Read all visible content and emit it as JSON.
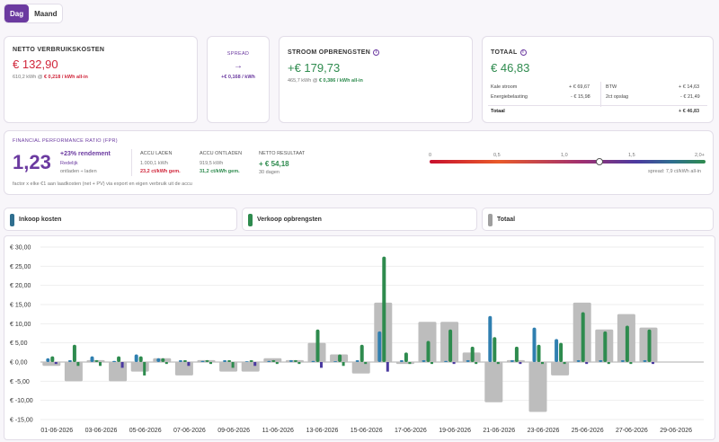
{
  "tabs": [
    {
      "label": "Dag",
      "active": true
    },
    {
      "label": "Maand",
      "active": false
    }
  ],
  "netto": {
    "title": "NETTO VERBRUIKSKOSTEN",
    "value": "€ 132,90",
    "kwh": "610,2 kWh @",
    "rate": "€ 0,218 / kWh all-in"
  },
  "spread": {
    "title": "SPREAD",
    "arrow": "→",
    "value": "+€ 0,168 / kWh"
  },
  "stroom": {
    "title": "STROOM OPBRENGSTEN",
    "value": "+€ 179,73",
    "kwh": "465,7 kWh @",
    "rate": "€ 0,386 / kWh all-in"
  },
  "totaal": {
    "title": "TOTAAL",
    "value": "€ 46,83",
    "rows": [
      {
        "label": "Kale stroom",
        "value": "+ € 69,67",
        "color": "green"
      },
      {
        "label": "BTW",
        "value": "+ € 14,63",
        "color": "green"
      },
      {
        "label": "Energiebelasting",
        "value": "- € 15,98",
        "color": "red"
      },
      {
        "label": "2ct opslag",
        "value": "- € 21,49",
        "color": "red"
      }
    ],
    "total_label": "Totaal",
    "total_value": "+ € 46,83"
  },
  "fpr": {
    "title": "FINANCIAL PERFORMANCE RATIO (FPR)",
    "value": "1,23",
    "rendement": "+23% rendement",
    "quality": "Redelijk",
    "formula": "ontladen ÷ laden",
    "laden_label": "ACCU LADEN",
    "laden_kwh": "1.000,1 kWh",
    "laden_rate": "23,2 ct/kWh gem.",
    "ontladen_label": "ACCU ONTLADEN",
    "ontladen_kwh": "919,5 kWh",
    "ontladen_rate": "31,2 ct/kWh gem.",
    "result_label": "NETTO RESULTAAT",
    "result_value": "+ € 54,18",
    "result_days": "30 dagen",
    "footnote": "factor x elke €1 aan laadkosten (net + PV) via export en eigen verbruik uit de accu",
    "scale_ticks": [
      "0",
      "0,5",
      "1,0",
      "1,5",
      "2,0+"
    ],
    "marker": 1.23,
    "spread_note": "spread: 7,9 ct/kWh all-in"
  },
  "legend": [
    {
      "label": "Inkoop kosten",
      "color": "#2f6f8f"
    },
    {
      "label": "Verkoop opbrengsten",
      "color": "#2e8b4e"
    },
    {
      "label": "Totaal",
      "color": "#9e9e9e"
    }
  ],
  "chart_data": {
    "type": "bar",
    "ylim": [
      -15,
      30
    ],
    "yticks": [
      "€ 30,00",
      "€ 25,00",
      "€ 20,00",
      "€ 15,00",
      "€ 10,00",
      "€ 5,00",
      "€ 0,00",
      "€ -5,00",
      "€ -10,00",
      "€ -15,00"
    ],
    "xlabels": [
      "01-06-2026",
      "03-06-2026",
      "05-06-2026",
      "07-06-2026",
      "09-06-2026",
      "11-06-2026",
      "13-06-2026",
      "15-06-2026",
      "17-06-2026",
      "19-06-2026",
      "21-06-2026",
      "23-06-2026",
      "25-06-2026",
      "27-06-2026",
      "29-06-2026"
    ],
    "series": [
      {
        "name": "Totaal",
        "color": "#bdbdbd",
        "values": [
          -1.0,
          -5.0,
          0.5,
          -5.0,
          -2.5,
          1.0,
          -3.5,
          0.5,
          -2.5,
          -2.5,
          1.0,
          0.5,
          5.0,
          2.0,
          -3.0,
          15.5,
          -0.5,
          10.5,
          10.5,
          2.5,
          -10.5,
          0.5,
          -13.0,
          -3.5,
          15.5,
          8.5,
          12.5,
          9.0,
          0,
          0
        ]
      },
      {
        "name": "Inkoop kosten",
        "color": "#2f7fb0",
        "values": [
          1.0,
          0.5,
          1.5,
          0.3,
          2.0,
          1.0,
          0.5,
          0.3,
          0.5,
          0.2,
          0.3,
          0.5,
          0.3,
          0.2,
          0.5,
          8.0,
          0.5,
          0.5,
          0.3,
          0.5,
          12.0,
          0.5,
          9.0,
          6.0,
          0.5,
          0.5,
          0.5,
          0.5,
          0,
          0
        ]
      },
      {
        "name": "Verkoop opbrengsten",
        "color": "#2e8b4e",
        "values": [
          1.5,
          4.5,
          0.5,
          1.5,
          1.5,
          1.0,
          0.5,
          0.5,
          0.5,
          0.5,
          0.5,
          0.5,
          8.5,
          2.0,
          4.5,
          27.5,
          2.5,
          5.5,
          8.5,
          4.0,
          6.5,
          4.0,
          4.5,
          5.0,
          13.0,
          8.0,
          9.5,
          8.5,
          0,
          0
        ]
      },
      {
        "name": "neg",
        "color": "#2e8b4e",
        "values": [
          -0.5,
          -1.0,
          -1.0,
          -1.5,
          -3.5,
          -0.5,
          -1.0,
          -0.5,
          -1.5,
          -1.0,
          -0.5,
          -0.5,
          -1.5,
          -1.0,
          -0.5,
          -2.5,
          -0.5,
          -0.5,
          -0.5,
          -0.5,
          -0.5,
          -0.5,
          -0.5,
          -0.5,
          -0.5,
          -0.5,
          -0.5,
          -0.5,
          0,
          0
        ]
      }
    ]
  }
}
